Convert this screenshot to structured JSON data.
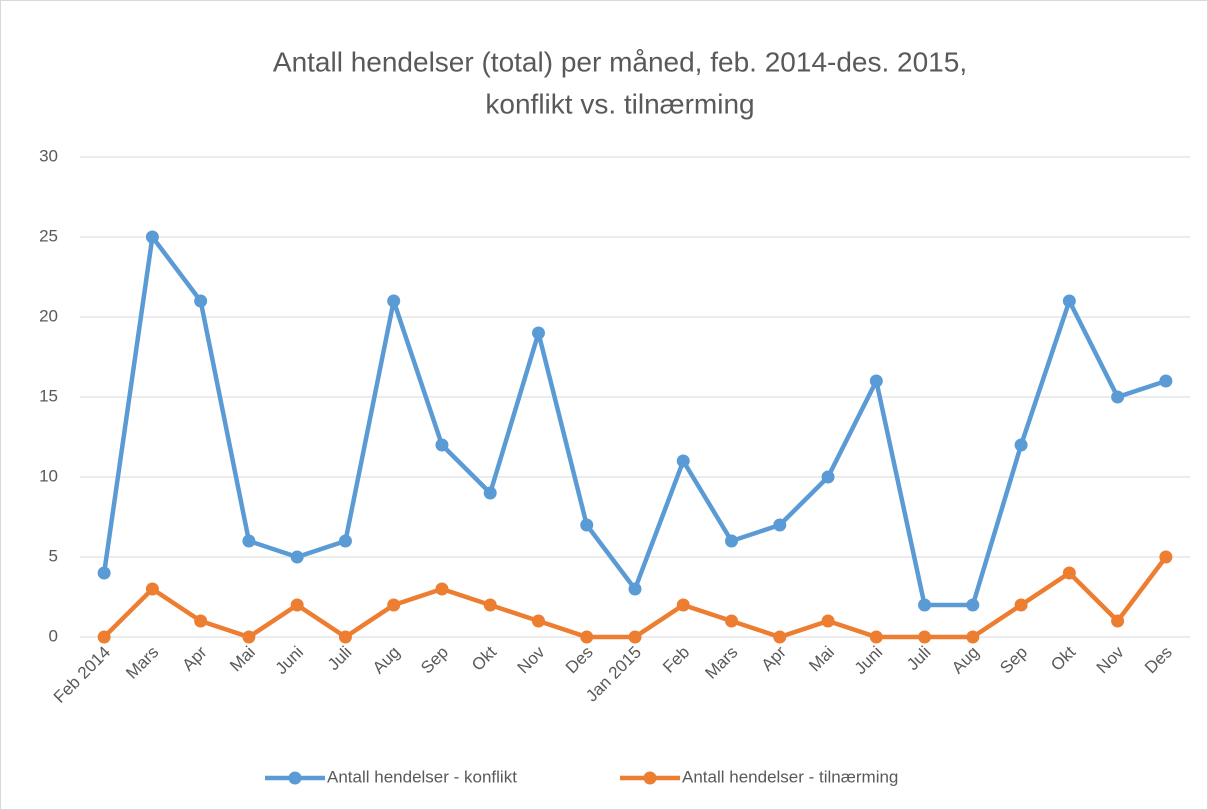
{
  "chart_data": {
    "type": "line",
    "title": [
      "Antall hendelser (total) per måned, feb. 2014-des. 2015,",
      "konflikt vs. tilnærming"
    ],
    "categories": [
      "Feb 2014",
      "Mars",
      "Apr",
      "Mai",
      "Juni",
      "Juli",
      "Aug",
      "Sep",
      "Okt",
      "Nov",
      "Des",
      "Jan 2015",
      "Feb",
      "Mars",
      "Apr",
      "Mai",
      "Juni",
      "Juli",
      "Aug",
      "Sep",
      "Okt",
      "Nov",
      "Des"
    ],
    "series": [
      {
        "name": "Antall hendelser - konflikt",
        "color": "#5b9bd5",
        "values": [
          4,
          25,
          21,
          6,
          5,
          6,
          21,
          12,
          9,
          19,
          7,
          3,
          11,
          6,
          7,
          10,
          16,
          2,
          2,
          12,
          21,
          15,
          16
        ]
      },
      {
        "name": "Antall hendelser - tilnærming",
        "color": "#ed7d31",
        "values": [
          0,
          3,
          1,
          0,
          2,
          0,
          2,
          3,
          2,
          1,
          0,
          0,
          2,
          1,
          0,
          1,
          0,
          0,
          0,
          2,
          4,
          1,
          5
        ]
      }
    ],
    "ylim": [
      0,
      30
    ],
    "yticks": [
      0,
      5,
      10,
      15,
      20,
      25,
      30
    ],
    "grid": true,
    "legend": "bottom"
  }
}
